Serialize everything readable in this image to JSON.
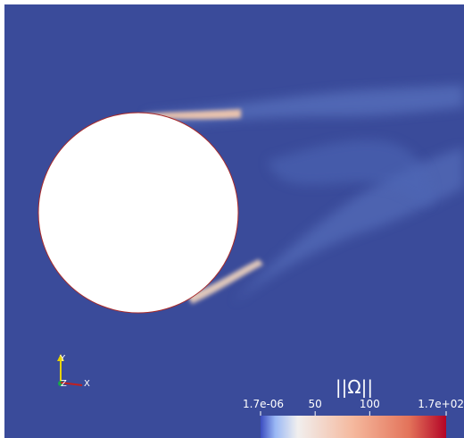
{
  "colorbar": {
    "title": "||Ω||",
    "range": [
      1.7e-06,
      170
    ],
    "ticks": [
      {
        "value": 1.7e-06,
        "label": "1.7e-06"
      },
      50,
      100,
      {
        "value": 170,
        "label": "1.7e+02"
      }
    ]
  },
  "orientation_axes": {
    "y": "Y",
    "z": "Z",
    "x": "X"
  }
}
